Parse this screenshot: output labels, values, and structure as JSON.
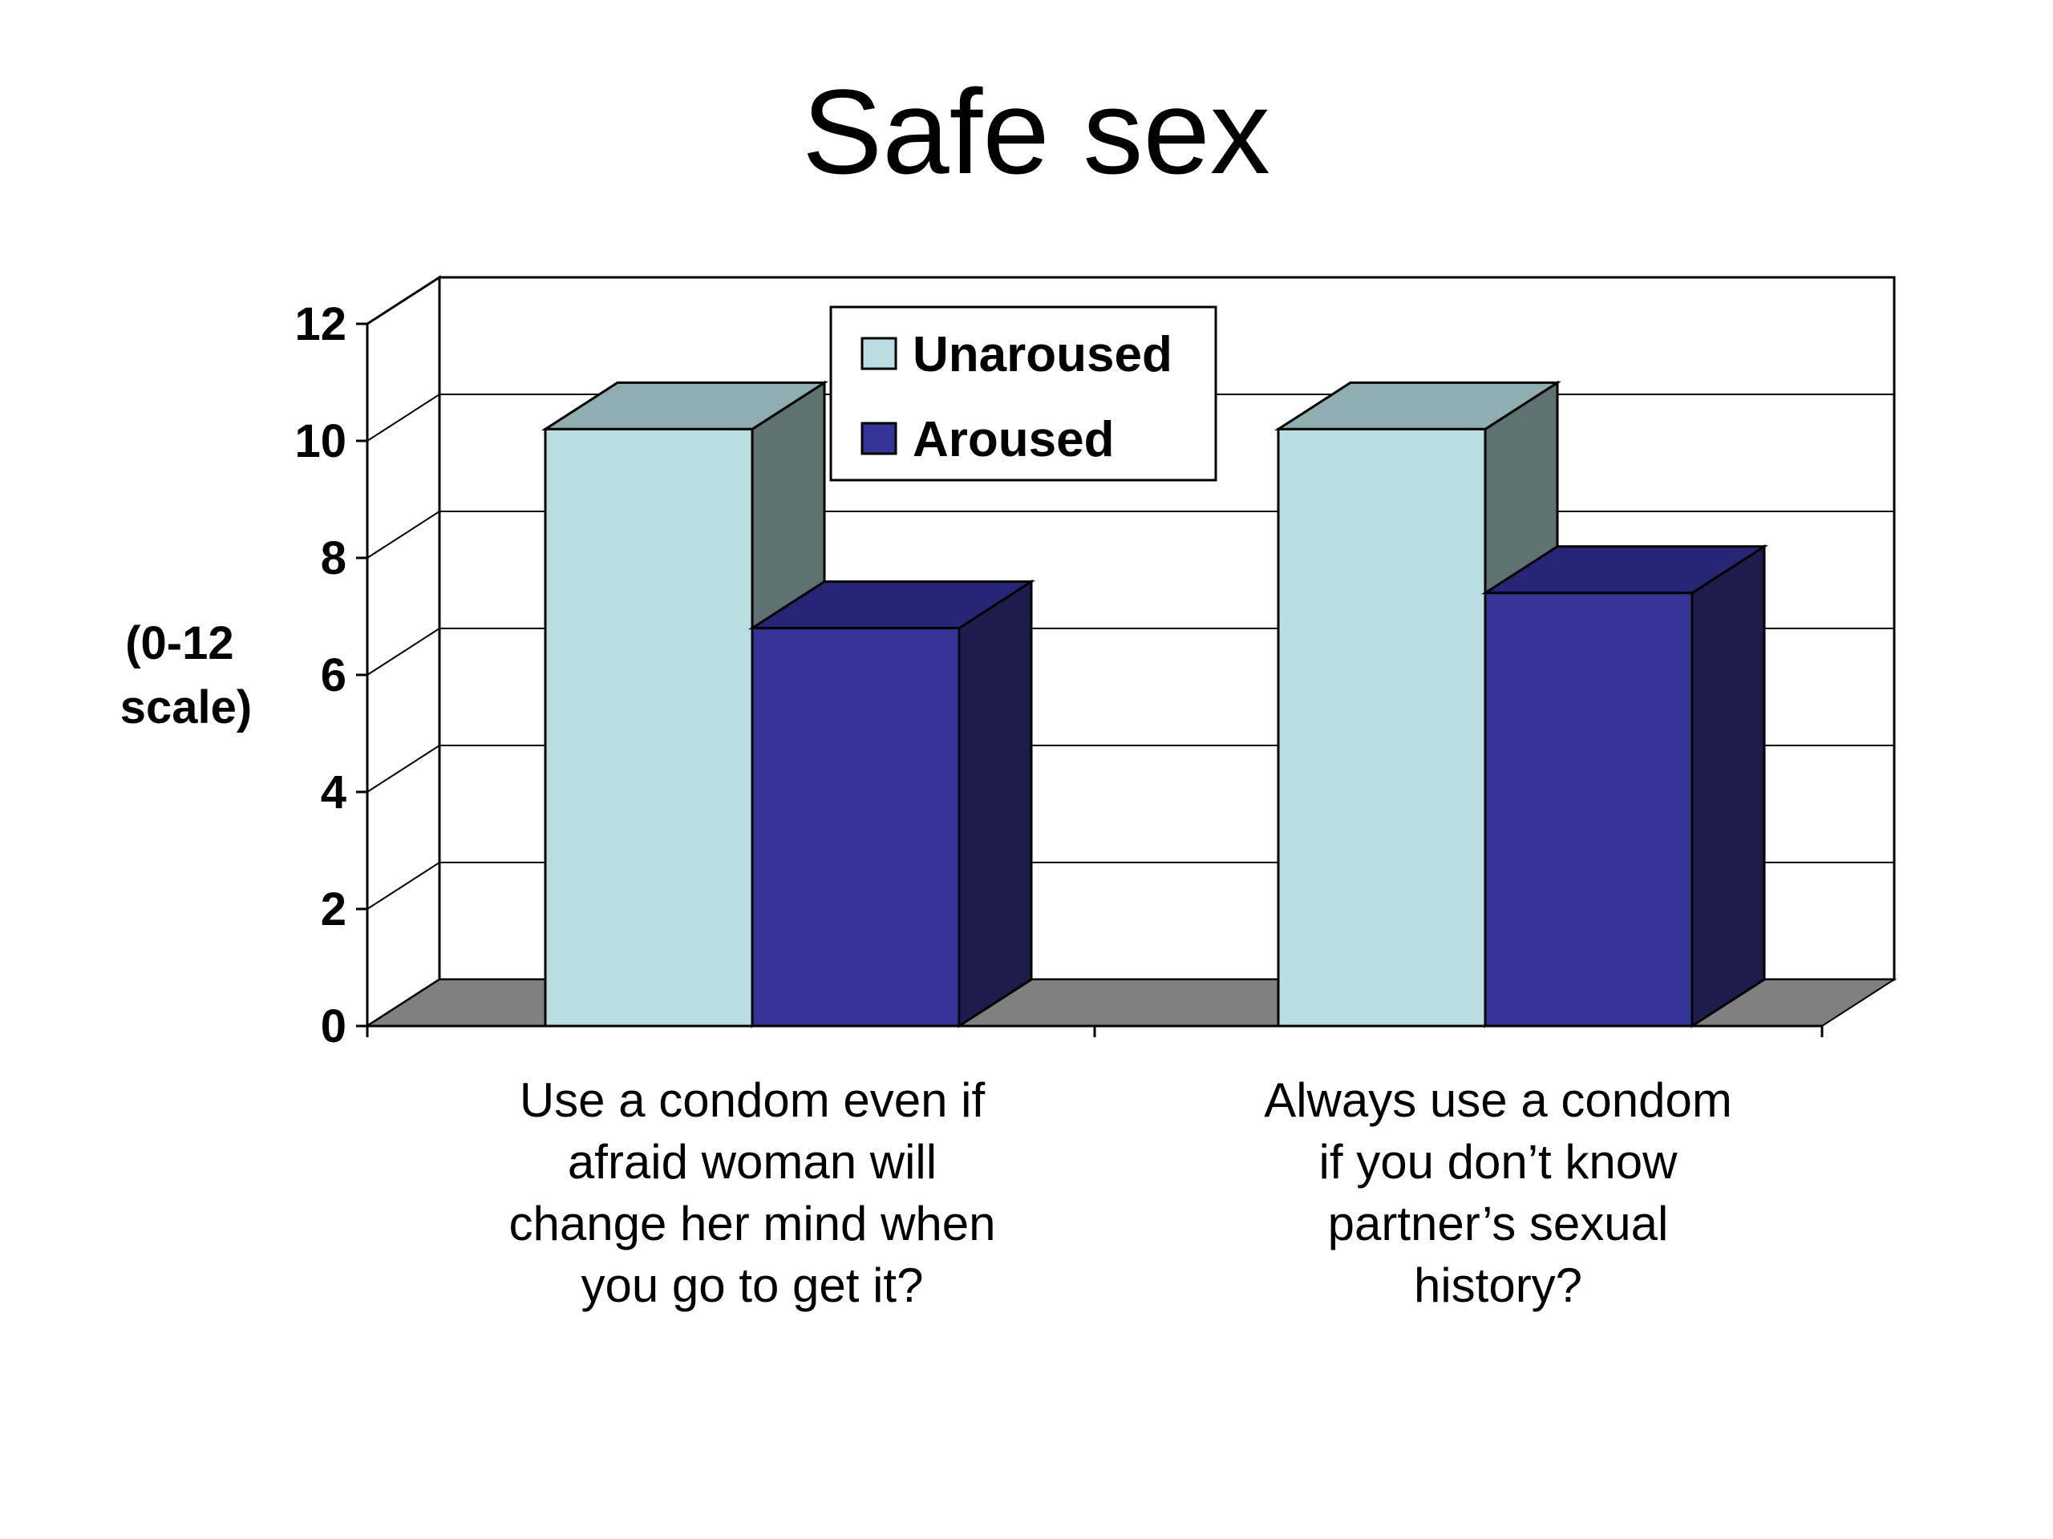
{
  "chart_data": {
    "type": "bar",
    "title": "Safe sex",
    "ylabel": [
      "(0-12",
      "scale)"
    ],
    "xlabel": "",
    "ylim": [
      0,
      12
    ],
    "yticks": [
      "0",
      "2",
      "4",
      "6",
      "8",
      "10",
      "12"
    ],
    "categories": [
      [
        "Use a condom even if",
        "afraid woman will",
        "change her mind when",
        "you go to get it?"
      ],
      [
        "Always use a condom",
        "if you don’t know",
        "partner’s sexual",
        "history?"
      ]
    ],
    "series": [
      {
        "name": "Unaroused",
        "values": [
          10.2,
          10.2
        ]
      },
      {
        "name": "Aroused",
        "values": [
          6.8,
          7.4
        ]
      }
    ],
    "legend_position": "top-center",
    "grid": true,
    "three_d": true,
    "colors": {
      "Unaroused": {
        "front": "#b9dfe3",
        "top": "#8eaeaf",
        "side": "#5f7272"
      },
      "Aroused": {
        "front": "#343397",
        "top": "#272676",
        "side": "#1c1c4d"
      },
      "floor": "#808080",
      "grid": "#000000"
    }
  }
}
